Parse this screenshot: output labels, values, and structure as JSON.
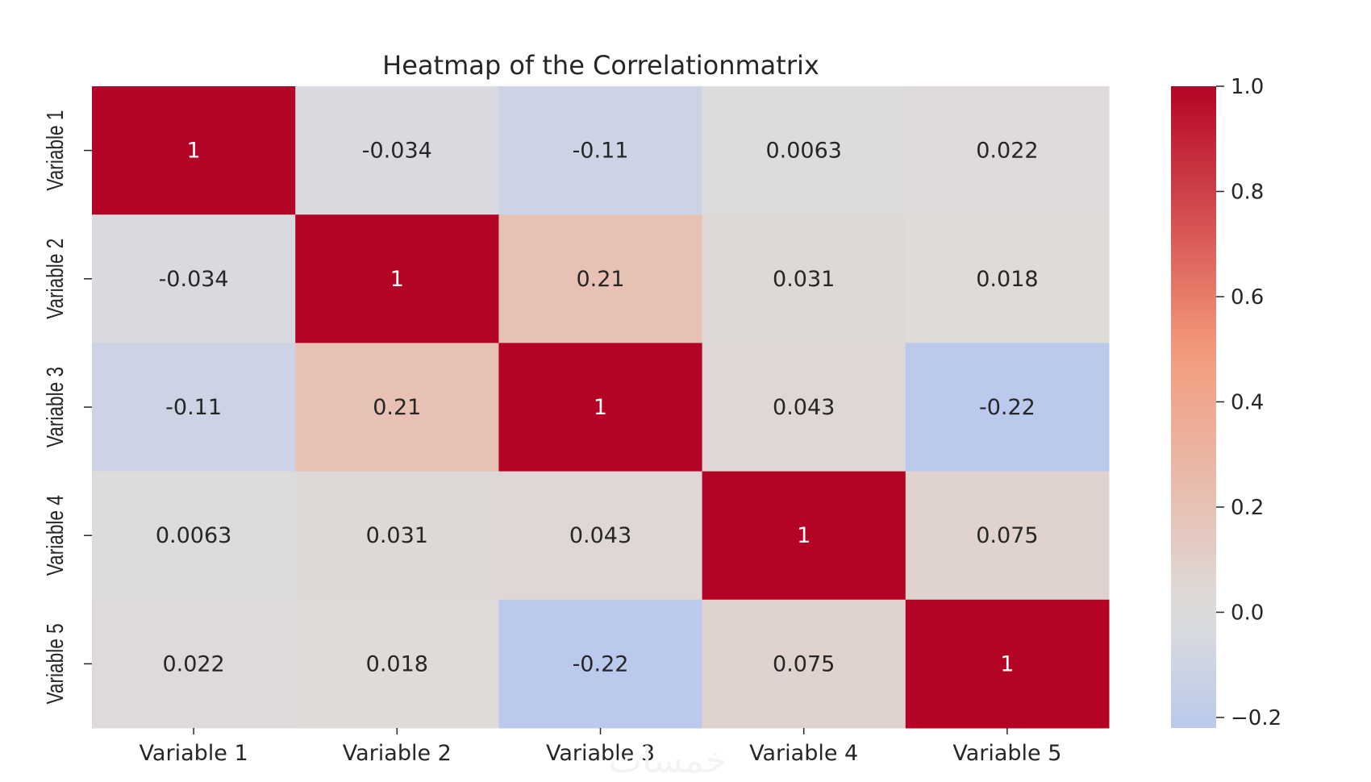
{
  "chart_data": {
    "type": "heatmap",
    "title": "Heatmap of the Correlationmatrix",
    "x_labels": [
      "Variable 1",
      "Variable 2",
      "Variable 3",
      "Variable 4",
      "Variable 5"
    ],
    "y_labels": [
      "Variable 1",
      "Variable 2",
      "Variable 3",
      "Variable 4",
      "Variable 5"
    ],
    "values": [
      [
        1,
        -0.034,
        -0.11,
        0.0063,
        0.022
      ],
      [
        -0.034,
        1,
        0.21,
        0.031,
        0.018
      ],
      [
        -0.11,
        0.21,
        1,
        0.043,
        -0.22
      ],
      [
        0.0063,
        0.031,
        0.043,
        1,
        0.075
      ],
      [
        0.022,
        0.018,
        -0.22,
        0.075,
        1
      ]
    ],
    "cell_labels": [
      [
        "1",
        "-0.034",
        "-0.11",
        "0.0063",
        "0.022"
      ],
      [
        "-0.034",
        "1",
        "0.21",
        "0.031",
        "0.018"
      ],
      [
        "-0.11",
        "0.21",
        "1",
        "0.043",
        "-0.22"
      ],
      [
        "0.0063",
        "0.031",
        "0.043",
        "1",
        "0.075"
      ],
      [
        "0.022",
        "0.018",
        "-0.22",
        "0.075",
        "1"
      ]
    ],
    "colorscale": "coolwarm",
    "vmin": -0.22,
    "vmax": 1.0,
    "center": 0,
    "colorbar_ticks": [
      1.0,
      0.8,
      0.6,
      0.4,
      0.2,
      0.0,
      -0.2
    ],
    "colorbar_tick_labels": [
      "1.0",
      "0.8",
      "0.6",
      "0.4",
      "0.2",
      "0.0",
      "−0.2"
    ]
  },
  "watermark": "خمسات"
}
